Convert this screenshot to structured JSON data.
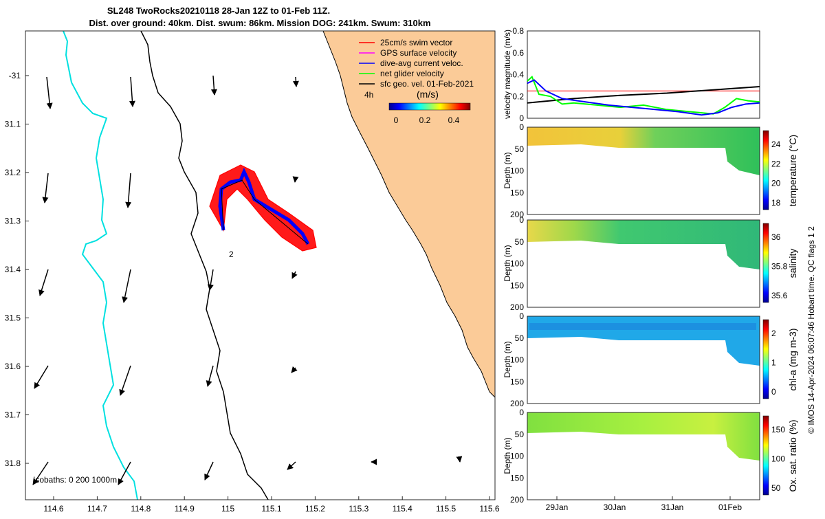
{
  "title": {
    "line1": "SL248 TwoRocks20210118 28-Jan 12Z to 01-Feb 11Z.",
    "line2": "Dist. over ground: 40km. Dist. swum: 86km. Mission DOG: 241km. Swum: 310km"
  },
  "map": {
    "xticks": [
      "114.6",
      "114.7",
      "114.8",
      "114.9",
      "115",
      "115.1",
      "115.2",
      "115.3",
      "115.4",
      "115.5",
      "115.6"
    ],
    "yticks": [
      "-31",
      "31.1",
      "31.2",
      "31.3",
      "31.4",
      "31.5",
      "31.6",
      "31.7",
      "31.8"
    ],
    "isobaths_label": "Isobaths: 0   200  1000m",
    "time_label": "4h",
    "point_label": "2",
    "legend": [
      {
        "label": "25cm/s swim vector",
        "color": "#ff0000"
      },
      {
        "label": "GPS surface velocity",
        "color": "#ff00ff"
      },
      {
        "label": "dive-avg current veloc.",
        "color": "#0000ff"
      },
      {
        "label": "net glider velocity",
        "color": "#00ff00"
      },
      {
        "label": "sfc geo. vel. 01-Feb-2021",
        "color": "#000000"
      }
    ],
    "colorbar": {
      "title": "(m/s)",
      "ticks": [
        "0",
        "0.2",
        "0.4"
      ]
    },
    "colors": {
      "land": "#fbcb98",
      "isobath_0": "#00e0e0",
      "isobath_200": "#000000",
      "swim": "#ff0000",
      "track": "#0000ff"
    }
  },
  "chart_data": [
    {
      "type": "line",
      "ylabel": "velocity magnitude (m/s)",
      "ylim": [
        0,
        0.8
      ],
      "yticks": [
        "0",
        "0.2",
        "0.4",
        "0.6",
        "0.8"
      ],
      "series": [
        {
          "color": "#ff0000",
          "x": [
            0,
            0.5,
            1
          ],
          "values": [
            0.25,
            0.25,
            0.25
          ]
        },
        {
          "color": "#000000",
          "x": [
            0,
            0.2,
            0.4,
            0.6,
            0.8,
            1
          ],
          "values": [
            0.14,
            0.18,
            0.21,
            0.23,
            0.26,
            0.29
          ]
        },
        {
          "color": "#00ff00",
          "x": [
            0,
            0.02,
            0.05,
            0.1,
            0.15,
            0.2,
            0.3,
            0.4,
            0.5,
            0.6,
            0.7,
            0.75,
            0.8,
            0.85,
            0.9,
            0.95,
            1
          ],
          "values": [
            0.34,
            0.38,
            0.22,
            0.2,
            0.13,
            0.14,
            0.12,
            0.1,
            0.12,
            0.08,
            0.06,
            0.05,
            0.04,
            0.1,
            0.18,
            0.16,
            0.15
          ]
        },
        {
          "color": "#0000ff",
          "x": [
            0,
            0.03,
            0.08,
            0.15,
            0.25,
            0.35,
            0.45,
            0.55,
            0.65,
            0.75,
            0.82,
            0.88,
            0.94,
            1
          ],
          "values": [
            0.32,
            0.35,
            0.25,
            0.18,
            0.15,
            0.12,
            0.1,
            0.08,
            0.06,
            0.03,
            0.05,
            0.1,
            0.13,
            0.14
          ]
        }
      ]
    },
    {
      "type": "heatmap",
      "ylabel": "Depth (m)",
      "cbar_label": "temperature (°C)",
      "ylim": [
        0,
        200
      ],
      "yticks": [
        "0",
        "50",
        "100",
        "150",
        "200"
      ],
      "cbar_ticks": [
        "18",
        "20",
        "22",
        "24"
      ]
    },
    {
      "type": "heatmap",
      "ylabel": "Depth (m)",
      "cbar_label": "salinity",
      "ylim": [
        0,
        200
      ],
      "yticks": [
        "0",
        "50",
        "100",
        "150",
        "200"
      ],
      "cbar_ticks": [
        "35.6",
        "35.8",
        "36"
      ]
    },
    {
      "type": "heatmap",
      "ylabel": "Depth (m)",
      "cbar_label": "chl-a (mg m-3)",
      "ylim": [
        0,
        200
      ],
      "yticks": [
        "0",
        "50",
        "100",
        "150",
        "200"
      ],
      "cbar_ticks": [
        "0",
        "1",
        "2"
      ]
    },
    {
      "type": "heatmap",
      "ylabel": "Depth (m)",
      "cbar_label": "Ox. sat. ratio (%)",
      "ylim": [
        0,
        200
      ],
      "yticks": [
        "0",
        "50",
        "100",
        "150",
        "200"
      ],
      "cbar_ticks": [
        "50",
        "100",
        "150"
      ],
      "xticks": [
        "29Jan",
        "30Jan",
        "31Jan",
        "01Feb"
      ]
    }
  ],
  "side_note": "© IMOS 14-Apr-2024 06:07:46 Hobart time. QC flags 1  2"
}
